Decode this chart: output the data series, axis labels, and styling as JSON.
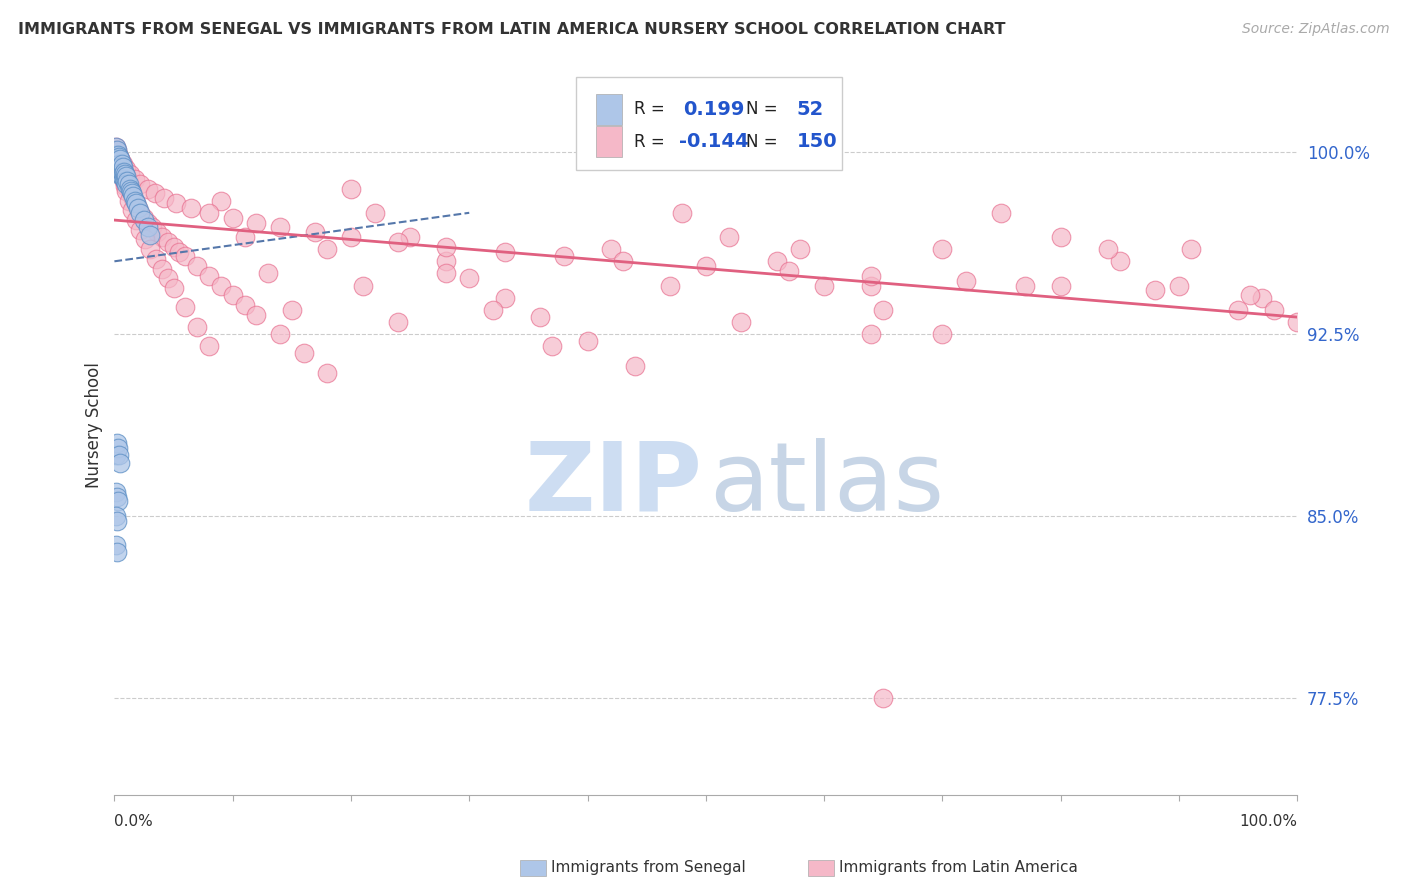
{
  "title": "IMMIGRANTS FROM SENEGAL VS IMMIGRANTS FROM LATIN AMERICA NURSERY SCHOOL CORRELATION CHART",
  "source": "Source: ZipAtlas.com",
  "ylabel": "Nursery School",
  "ytick_labels": [
    "77.5%",
    "85.0%",
    "92.5%",
    "100.0%"
  ],
  "ytick_values": [
    0.775,
    0.85,
    0.925,
    1.0
  ],
  "xmin": 0.0,
  "xmax": 1.0,
  "ymin": 0.735,
  "ymax": 1.04,
  "blue_color": "#aec6e8",
  "blue_edge_color": "#5b8ec4",
  "blue_line_color": "#5577aa",
  "pink_color": "#f5b8c8",
  "pink_edge_color": "#e87090",
  "pink_line_color": "#e06080",
  "watermark_zip_color": "#c5d8f0",
  "watermark_atlas_color": "#b0c4dc",
  "label_senegal": "Immigrants from Senegal",
  "label_latam": "Immigrants from Latin America",
  "senegal_x": [
    0.001,
    0.001,
    0.001,
    0.002,
    0.002,
    0.002,
    0.002,
    0.003,
    0.003,
    0.003,
    0.003,
    0.004,
    0.004,
    0.004,
    0.005,
    0.005,
    0.005,
    0.006,
    0.006,
    0.007,
    0.007,
    0.008,
    0.008,
    0.009,
    0.009,
    0.01,
    0.01,
    0.011,
    0.012,
    0.013,
    0.014,
    0.015,
    0.016,
    0.017,
    0.018,
    0.02,
    0.022,
    0.025,
    0.028,
    0.03,
    0.001,
    0.002,
    0.003,
    0.004,
    0.005,
    0.001,
    0.002,
    0.003,
    0.001,
    0.002,
    0.001,
    0.002
  ],
  "senegal_y": [
    1.002,
    0.999,
    0.997,
    1.001,
    0.998,
    0.996,
    0.993,
    0.999,
    0.997,
    0.994,
    0.991,
    0.998,
    0.995,
    0.992,
    0.997,
    0.994,
    0.991,
    0.995,
    0.992,
    0.994,
    0.991,
    0.992,
    0.989,
    0.991,
    0.988,
    0.99,
    0.987,
    0.988,
    0.987,
    0.985,
    0.984,
    0.983,
    0.982,
    0.98,
    0.979,
    0.977,
    0.975,
    0.972,
    0.969,
    0.966,
    0.875,
    0.88,
    0.878,
    0.875,
    0.872,
    0.86,
    0.858,
    0.856,
    0.85,
    0.848,
    0.838,
    0.835
  ],
  "latam_x": [
    0.001,
    0.001,
    0.001,
    0.002,
    0.002,
    0.002,
    0.003,
    0.003,
    0.003,
    0.004,
    0.004,
    0.004,
    0.005,
    0.005,
    0.005,
    0.006,
    0.006,
    0.007,
    0.007,
    0.008,
    0.008,
    0.009,
    0.009,
    0.01,
    0.01,
    0.011,
    0.012,
    0.013,
    0.014,
    0.015,
    0.016,
    0.018,
    0.02,
    0.022,
    0.025,
    0.028,
    0.032,
    0.036,
    0.04,
    0.045,
    0.05,
    0.055,
    0.06,
    0.07,
    0.08,
    0.09,
    0.1,
    0.11,
    0.12,
    0.14,
    0.16,
    0.18,
    0.2,
    0.22,
    0.25,
    0.28,
    0.3,
    0.33,
    0.36,
    0.4,
    0.44,
    0.48,
    0.52,
    0.56,
    0.6,
    0.65,
    0.7,
    0.75,
    0.8,
    0.85,
    0.9,
    0.95,
    1.0,
    0.002,
    0.003,
    0.004,
    0.005,
    0.006,
    0.007,
    0.008,
    0.009,
    0.01,
    0.012,
    0.015,
    0.018,
    0.022,
    0.026,
    0.03,
    0.035,
    0.04,
    0.045,
    0.05,
    0.06,
    0.07,
    0.08,
    0.09,
    0.11,
    0.13,
    0.15,
    0.18,
    0.21,
    0.24,
    0.28,
    0.32,
    0.37,
    0.42,
    0.47,
    0.53,
    0.58,
    0.64,
    0.7,
    0.77,
    0.84,
    0.91,
    0.97,
    0.003,
    0.005,
    0.007,
    0.01,
    0.013,
    0.017,
    0.022,
    0.028,
    0.034,
    0.042,
    0.052,
    0.065,
    0.08,
    0.1,
    0.12,
    0.14,
    0.17,
    0.2,
    0.24,
    0.28,
    0.33,
    0.38,
    0.43,
    0.5,
    0.57,
    0.64,
    0.72,
    0.8,
    0.88,
    0.96,
    0.64,
    0.98
  ],
  "latam_y": [
    1.002,
    0.999,
    0.997,
    1.001,
    0.998,
    0.996,
    0.999,
    0.996,
    0.993,
    0.998,
    0.995,
    0.992,
    0.997,
    0.994,
    0.991,
    0.995,
    0.992,
    0.994,
    0.991,
    0.992,
    0.989,
    0.991,
    0.988,
    0.99,
    0.987,
    0.986,
    0.985,
    0.984,
    0.983,
    0.982,
    0.981,
    0.979,
    0.977,
    0.975,
    0.973,
    0.971,
    0.969,
    0.967,
    0.965,
    0.963,
    0.961,
    0.959,
    0.957,
    0.953,
    0.949,
    0.945,
    0.941,
    0.937,
    0.933,
    0.925,
    0.917,
    0.909,
    0.985,
    0.975,
    0.965,
    0.955,
    0.948,
    0.94,
    0.932,
    0.922,
    0.912,
    0.975,
    0.965,
    0.955,
    0.945,
    0.935,
    0.925,
    0.975,
    0.965,
    0.955,
    0.945,
    0.935,
    0.93,
    1.0,
    0.998,
    0.996,
    0.994,
    0.992,
    0.99,
    0.988,
    0.986,
    0.984,
    0.98,
    0.976,
    0.972,
    0.968,
    0.964,
    0.96,
    0.956,
    0.952,
    0.948,
    0.944,
    0.936,
    0.928,
    0.92,
    0.98,
    0.965,
    0.95,
    0.935,
    0.96,
    0.945,
    0.93,
    0.95,
    0.935,
    0.92,
    0.96,
    0.945,
    0.93,
    0.96,
    0.945,
    0.96,
    0.945,
    0.96,
    0.96,
    0.94,
    0.999,
    0.997,
    0.995,
    0.993,
    0.991,
    0.989,
    0.987,
    0.985,
    0.983,
    0.981,
    0.979,
    0.977,
    0.975,
    0.973,
    0.971,
    0.969,
    0.967,
    0.965,
    0.963,
    0.961,
    0.959,
    0.957,
    0.955,
    0.953,
    0.951,
    0.949,
    0.947,
    0.945,
    0.943,
    0.941,
    0.925,
    0.935
  ]
}
